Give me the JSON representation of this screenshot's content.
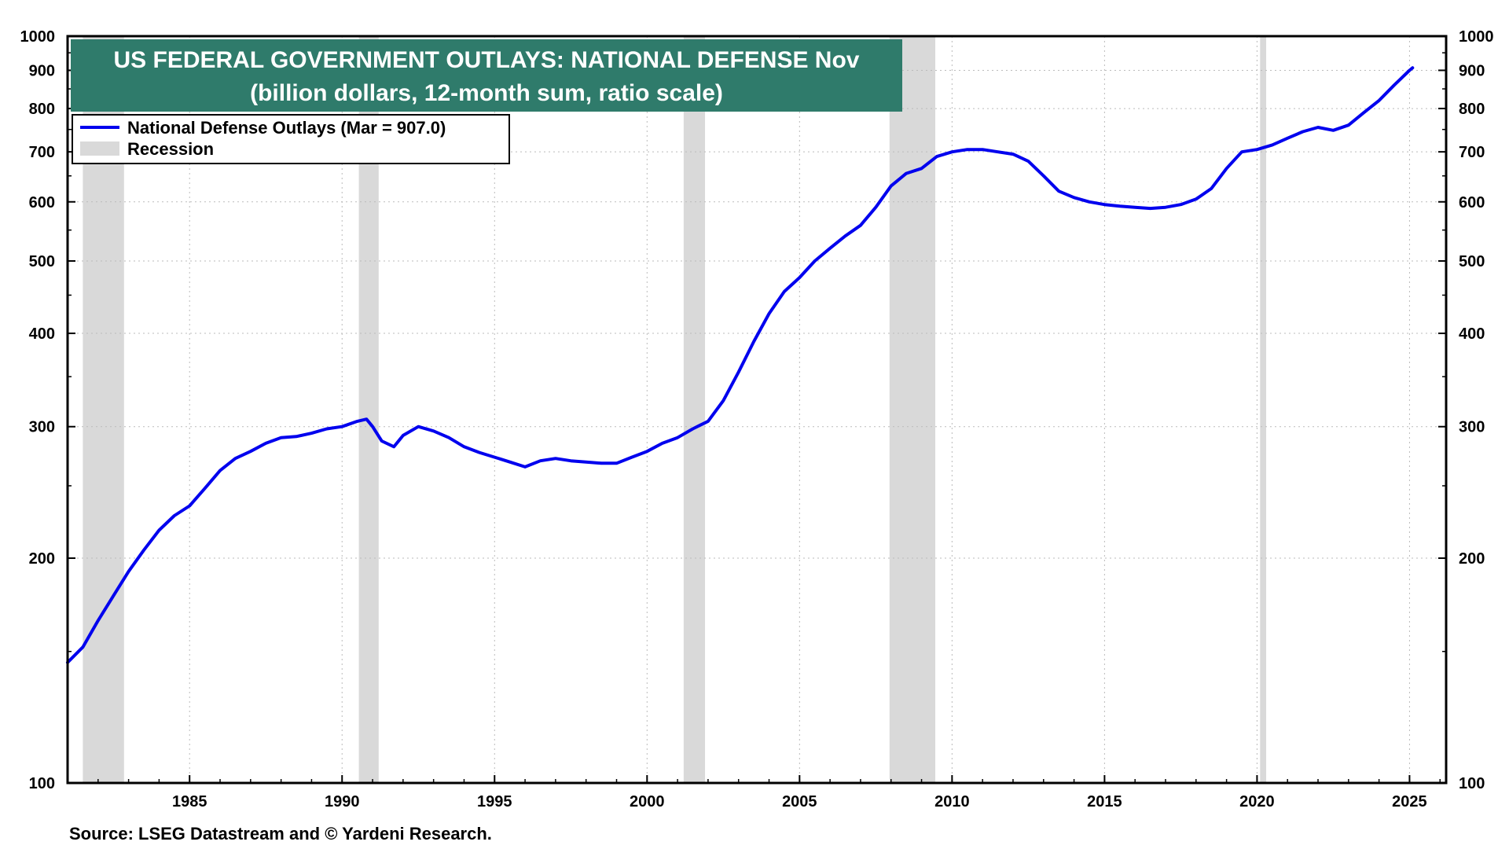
{
  "chart_data": {
    "type": "line",
    "title": "US FEDERAL GOVERNMENT OUTLAYS: NATIONAL DEFENSE Nov",
    "subtitle": "(billion dollars, 12-month sum, ratio scale)",
    "source": "Source: LSEG Datastream and © Yardeni Research.",
    "legend": [
      {
        "label": "National Defense Outlays (Mar = 907.0)",
        "kind": "line",
        "color": "#0000ee"
      },
      {
        "label": "Recession",
        "kind": "band",
        "color": "#d9d9d9"
      }
    ],
    "legend_position": "top-left",
    "x_range": [
      1981.0,
      2026.2
    ],
    "y_range": [
      100,
      1000
    ],
    "y_scale": "ratio",
    "grid": true,
    "x_ticks": [
      "1985",
      "1990",
      "1995",
      "2000",
      "2005",
      "2010",
      "2015",
      "2020",
      "2025"
    ],
    "y_ticks": [
      "100",
      "200",
      "300",
      "400",
      "500",
      "600",
      "700",
      "800",
      "900",
      "1000"
    ],
    "recessions": [
      {
        "start": 1981.5,
        "end": 1982.85
      },
      {
        "start": 1990.55,
        "end": 1991.2
      },
      {
        "start": 2001.2,
        "end": 2001.9
      },
      {
        "start": 2007.95,
        "end": 2009.45
      },
      {
        "start": 2020.1,
        "end": 2020.3
      }
    ],
    "series": [
      {
        "name": "National Defense Outlays (Mar = 907.0)",
        "color": "#0000ee",
        "x": [
          1981.0,
          1981.5,
          1982.0,
          1982.5,
          1983.0,
          1983.5,
          1984.0,
          1984.5,
          1985.0,
          1985.5,
          1986.0,
          1986.5,
          1987.0,
          1987.5,
          1988.0,
          1988.5,
          1989.0,
          1989.5,
          1990.0,
          1990.5,
          1990.8,
          1991.0,
          1991.3,
          1991.7,
          1992.0,
          1992.5,
          1993.0,
          1993.5,
          1994.0,
          1994.5,
          1995.0,
          1995.5,
          1996.0,
          1996.5,
          1997.0,
          1997.5,
          1998.0,
          1998.5,
          1999.0,
          1999.5,
          2000.0,
          2000.5,
          2001.0,
          2001.5,
          2002.0,
          2002.5,
          2003.0,
          2003.5,
          2004.0,
          2004.5,
          2005.0,
          2005.5,
          2006.0,
          2006.5,
          2007.0,
          2007.5,
          2008.0,
          2008.5,
          2009.0,
          2009.5,
          2010.0,
          2010.5,
          2011.0,
          2011.5,
          2012.0,
          2012.5,
          2013.0,
          2013.5,
          2014.0,
          2014.5,
          2015.0,
          2015.5,
          2016.0,
          2016.5,
          2017.0,
          2017.5,
          2018.0,
          2018.5,
          2019.0,
          2019.5,
          2020.0,
          2020.5,
          2021.0,
          2021.5,
          2022.0,
          2022.5,
          2023.0,
          2023.5,
          2024.0,
          2024.5,
          2025.0,
          2025.1
        ],
        "y": [
          145,
          152,
          165,
          178,
          192,
          205,
          218,
          228,
          235,
          248,
          262,
          272,
          278,
          285,
          290,
          291,
          294,
          298,
          300,
          305,
          307,
          300,
          287,
          282,
          292,
          300,
          296,
          290,
          282,
          277,
          273,
          269,
          265,
          270,
          272,
          270,
          269,
          268,
          268,
          273,
          278,
          285,
          290,
          298,
          305,
          325,
          355,
          390,
          425,
          455,
          475,
          500,
          520,
          540,
          558,
          590,
          630,
          655,
          665,
          690,
          700,
          705,
          705,
          700,
          695,
          680,
          650,
          620,
          608,
          600,
          595,
          592,
          590,
          588,
          590,
          595,
          605,
          625,
          665,
          700,
          705,
          715,
          730,
          745,
          755,
          748,
          760,
          790,
          820,
          860,
          900,
          907
        ]
      }
    ]
  }
}
